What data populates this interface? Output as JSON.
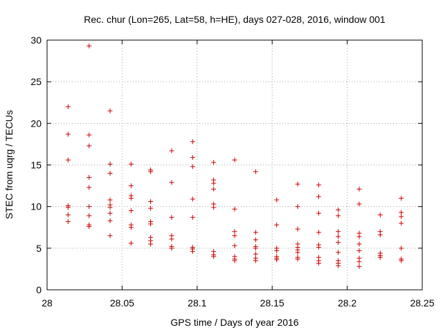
{
  "chart_data": {
    "type": "scatter",
    "title": "Rec. chur (Lon=265, Lat=58, h=HE), days 027-028, 2016, window 001",
    "xlabel": "GPS time / Days of year 2016",
    "ylabel": "STEC from uqrg / TECUs",
    "xlim": [
      28,
      28.25
    ],
    "ylim": [
      0,
      30
    ],
    "grid": true,
    "marker": "+",
    "colors": {
      "points": "#cc0000",
      "grid": "#a0a0a0",
      "axis": "#000000"
    },
    "x_ticks": [
      {
        "value": 28,
        "label": "28"
      },
      {
        "value": 28.05,
        "label": "28.05"
      },
      {
        "value": 28.1,
        "label": "28.1"
      },
      {
        "value": 28.15,
        "label": "28.15"
      },
      {
        "value": 28.2,
        "label": "28.2"
      },
      {
        "value": 28.25,
        "label": "28.25"
      }
    ],
    "y_ticks": [
      {
        "value": 0,
        "label": "0"
      },
      {
        "value": 5,
        "label": "5"
      },
      {
        "value": 10,
        "label": "10"
      },
      {
        "value": 15,
        "label": "15"
      },
      {
        "value": 20,
        "label": "20"
      },
      {
        "value": 25,
        "label": "25"
      },
      {
        "value": 30,
        "label": "30"
      }
    ],
    "series": [
      {
        "points": [
          [
            28.014,
            22.0
          ],
          [
            28.014,
            18.7
          ],
          [
            28.014,
            15.6
          ],
          [
            28.014,
            10.1
          ],
          [
            28.014,
            9.9
          ],
          [
            28.014,
            9.0
          ],
          [
            28.014,
            8.2
          ],
          [
            28.028,
            29.3
          ],
          [
            28.028,
            18.6
          ],
          [
            28.028,
            17.3
          ],
          [
            28.028,
            13.5
          ],
          [
            28.028,
            12.3
          ],
          [
            28.028,
            10.0
          ],
          [
            28.028,
            8.9
          ],
          [
            28.028,
            7.8
          ],
          [
            28.028,
            7.6
          ],
          [
            28.042,
            21.5
          ],
          [
            28.042,
            15.1
          ],
          [
            28.042,
            14.0
          ],
          [
            28.042,
            10.8
          ],
          [
            28.042,
            10.2
          ],
          [
            28.042,
            9.9
          ],
          [
            28.042,
            9.2
          ],
          [
            28.042,
            8.3
          ],
          [
            28.042,
            6.5
          ],
          [
            28.056,
            15.1
          ],
          [
            28.056,
            12.5
          ],
          [
            28.056,
            11.3
          ],
          [
            28.056,
            11.0
          ],
          [
            28.056,
            9.5
          ],
          [
            28.056,
            7.8
          ],
          [
            28.056,
            7.5
          ],
          [
            28.056,
            5.6
          ],
          [
            28.069,
            14.4
          ],
          [
            28.069,
            14.2
          ],
          [
            28.069,
            10.6
          ],
          [
            28.069,
            9.8
          ],
          [
            28.069,
            8.2
          ],
          [
            28.069,
            7.9
          ],
          [
            28.069,
            6.3
          ],
          [
            28.069,
            5.9
          ],
          [
            28.069,
            5.5
          ],
          [
            28.083,
            16.7
          ],
          [
            28.083,
            12.9
          ],
          [
            28.083,
            8.7
          ],
          [
            28.083,
            6.5
          ],
          [
            28.083,
            6.1
          ],
          [
            28.083,
            5.2
          ],
          [
            28.083,
            5.0
          ],
          [
            28.097,
            17.8
          ],
          [
            28.097,
            15.9
          ],
          [
            28.097,
            14.8
          ],
          [
            28.097,
            10.9
          ],
          [
            28.097,
            8.7
          ],
          [
            28.097,
            5.1
          ],
          [
            28.097,
            4.9
          ],
          [
            28.097,
            4.6
          ],
          [
            28.111,
            15.3
          ],
          [
            28.111,
            13.2
          ],
          [
            28.111,
            12.8
          ],
          [
            28.111,
            12.1
          ],
          [
            28.111,
            10.3
          ],
          [
            28.111,
            9.9
          ],
          [
            28.111,
            4.6
          ],
          [
            28.111,
            4.2
          ],
          [
            28.111,
            4.0
          ],
          [
            28.125,
            15.6
          ],
          [
            28.125,
            9.7
          ],
          [
            28.125,
            7.0
          ],
          [
            28.125,
            6.5
          ],
          [
            28.125,
            5.3
          ],
          [
            28.125,
            4.0
          ],
          [
            28.125,
            3.7
          ],
          [
            28.125,
            3.5
          ],
          [
            28.139,
            14.2
          ],
          [
            28.139,
            6.9
          ],
          [
            28.139,
            6.0
          ],
          [
            28.139,
            5.2
          ],
          [
            28.139,
            5.0
          ],
          [
            28.139,
            4.3
          ],
          [
            28.139,
            3.8
          ],
          [
            28.139,
            3.5
          ],
          [
            28.153,
            10.8
          ],
          [
            28.153,
            7.8
          ],
          [
            28.153,
            5.0
          ],
          [
            28.153,
            4.7
          ],
          [
            28.153,
            4.0
          ],
          [
            28.153,
            3.8
          ],
          [
            28.153,
            3.6
          ],
          [
            28.167,
            12.7
          ],
          [
            28.167,
            10.0
          ],
          [
            28.167,
            7.3
          ],
          [
            28.167,
            5.5
          ],
          [
            28.167,
            5.1
          ],
          [
            28.167,
            4.8
          ],
          [
            28.167,
            4.5
          ],
          [
            28.167,
            3.9
          ],
          [
            28.167,
            3.7
          ],
          [
            28.181,
            12.6
          ],
          [
            28.181,
            11.2
          ],
          [
            28.181,
            9.2
          ],
          [
            28.181,
            6.9
          ],
          [
            28.181,
            5.4
          ],
          [
            28.181,
            5.1
          ],
          [
            28.181,
            3.9
          ],
          [
            28.181,
            3.5
          ],
          [
            28.181,
            3.2
          ],
          [
            28.194,
            9.6
          ],
          [
            28.194,
            8.9
          ],
          [
            28.194,
            7.0
          ],
          [
            28.194,
            6.4
          ],
          [
            28.194,
            5.7
          ],
          [
            28.194,
            4.5
          ],
          [
            28.194,
            3.5
          ],
          [
            28.194,
            3.2
          ],
          [
            28.194,
            2.9
          ],
          [
            28.208,
            12.1
          ],
          [
            28.208,
            10.3
          ],
          [
            28.208,
            6.8
          ],
          [
            28.208,
            6.4
          ],
          [
            28.208,
            5.5
          ],
          [
            28.208,
            4.7
          ],
          [
            28.208,
            3.8
          ],
          [
            28.208,
            3.4
          ],
          [
            28.208,
            2.8
          ],
          [
            28.222,
            9.0
          ],
          [
            28.222,
            7.0
          ],
          [
            28.222,
            6.6
          ],
          [
            28.222,
            4.4
          ],
          [
            28.222,
            4.1
          ],
          [
            28.222,
            3.9
          ],
          [
            28.236,
            11.0
          ],
          [
            28.236,
            9.3
          ],
          [
            28.236,
            8.8
          ],
          [
            28.236,
            8.0
          ],
          [
            28.236,
            5.0
          ],
          [
            28.236,
            3.7
          ],
          [
            28.236,
            3.5
          ]
        ]
      }
    ]
  }
}
